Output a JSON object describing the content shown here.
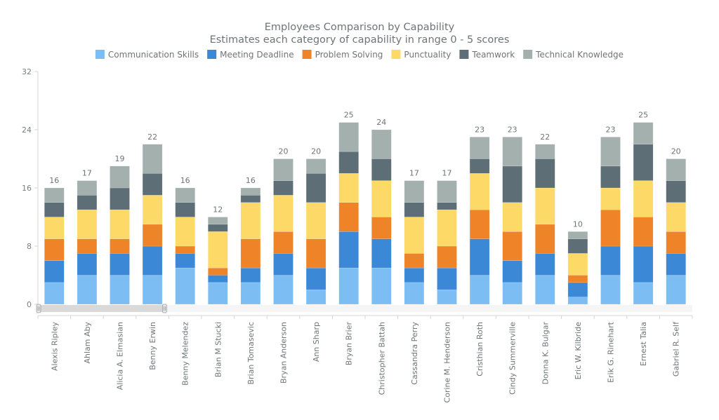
{
  "chart_data": {
    "type": "bar",
    "stacked": true,
    "title": "Employees Comparison by Capability",
    "subtitle": "Estimates each category of capability in range 0 - 5 scores",
    "categories": [
      "Alexis Ripley",
      "Ahlam Aby",
      "Alicia A. Elmasian",
      "Benny Erwin",
      "Benny Melendez",
      "Brian M Stucki",
      "Brian Tomasevic",
      "Bryan Anderson",
      "Ann Sharp",
      "Bryan Brier",
      "Christopher Battah",
      "Cassandra Perry",
      "Corine M. Henderson",
      "Cristhian Roth",
      "Cindy Summerville",
      "Donna K. Bulgar",
      "Eric W. Kilbride",
      "Erik G. Rinehart",
      "Ernest Talia",
      "Gabriel R. Self"
    ],
    "series": [
      {
        "name": "Communication Skills",
        "color": "#7cbef4",
        "values": [
          3,
          4,
          4,
          4,
          5,
          3,
          3,
          4,
          2,
          5,
          5,
          3,
          2,
          4,
          3,
          4,
          1,
          4,
          3,
          4
        ]
      },
      {
        "name": "Meeting Deadline",
        "color": "#3a88d6",
        "values": [
          3,
          3,
          3,
          4,
          2,
          1,
          2,
          3,
          3,
          5,
          4,
          2,
          3,
          5,
          3,
          3,
          2,
          4,
          5,
          3
        ]
      },
      {
        "name": "Problem Solving",
        "color": "#ef8328",
        "values": [
          3,
          2,
          2,
          3,
          1,
          1,
          4,
          3,
          4,
          4,
          3,
          2,
          3,
          4,
          4,
          4,
          1,
          5,
          4,
          3
        ]
      },
      {
        "name": "Punctuality",
        "color": "#fdd968",
        "values": [
          3,
          4,
          4,
          4,
          4,
          5,
          5,
          5,
          5,
          4,
          5,
          5,
          5,
          5,
          4,
          5,
          3,
          3,
          5,
          4
        ]
      },
      {
        "name": "Teamwork",
        "color": "#5d6e76",
        "values": [
          2,
          2,
          3,
          3,
          2,
          1,
          1,
          2,
          4,
          3,
          3,
          2,
          1,
          2,
          5,
          4,
          2,
          3,
          5,
          3
        ]
      },
      {
        "name": "Technical Knowledge",
        "color": "#a3b0ae",
        "values": [
          2,
          2,
          3,
          4,
          2,
          1,
          1,
          3,
          2,
          4,
          4,
          3,
          3,
          3,
          4,
          2,
          1,
          4,
          3,
          3
        ]
      }
    ],
    "totals": [
      16,
      17,
      19,
      22,
      16,
      12,
      16,
      20,
      20,
      25,
      24,
      17,
      17,
      23,
      23,
      22,
      10,
      23,
      25,
      20
    ],
    "ylim": [
      0,
      32
    ],
    "yticks": [
      0,
      8,
      16,
      24,
      32
    ],
    "xlabel": "",
    "ylabel": "",
    "legend_position": "top",
    "grid": false
  }
}
